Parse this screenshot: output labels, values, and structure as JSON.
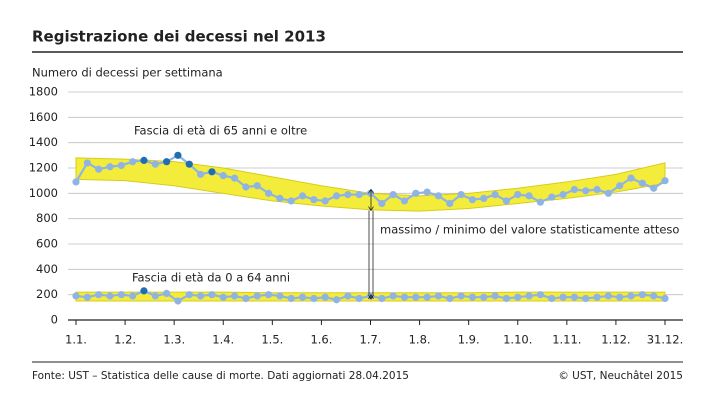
{
  "chart_data": {
    "type": "line",
    "title": "Registrazione dei decessi nel 2013",
    "y_label": "Numero di decessi per settimana",
    "source": "Fonte: UST – Statistica delle cause di morte. Dati aggiornati 28.04.2015",
    "copyright": "© UST, Neuchâtel 2015",
    "annotations": [
      "Fascia di età di 65 anni e oltre",
      "Fascia di età da 0 a 64 anni",
      "massimo / minimo del valore statisticamente atteso"
    ],
    "ylim": [
      0,
      1800
    ],
    "yticks": [
      0,
      200,
      400,
      600,
      800,
      1000,
      1200,
      1400,
      1600,
      1800
    ],
    "xlim": [
      0,
      12
    ],
    "xticks": [
      {
        "value": 0,
        "label": "1.1."
      },
      {
        "value": 1,
        "label": "1.2."
      },
      {
        "value": 2,
        "label": "1.3."
      },
      {
        "value": 3,
        "label": "1.4."
      },
      {
        "value": 4,
        "label": "1.5."
      },
      {
        "value": 5,
        "label": "1.6."
      },
      {
        "value": 6,
        "label": "1.7."
      },
      {
        "value": 7,
        "label": "1.8."
      },
      {
        "value": 8,
        "label": "1.9."
      },
      {
        "value": 9,
        "label": "1.10."
      },
      {
        "value": 10,
        "label": "1.11."
      },
      {
        "value": 11,
        "label": "1.12."
      },
      {
        "value": 12,
        "label": "31.12."
      }
    ],
    "grid": true,
    "band_color": "#f4ec3a",
    "band_edge_color": "#d6cc1e",
    "bands": [
      {
        "upper": [
          1280,
          1270,
          1250,
          1200,
          1130,
          1060,
          1000,
          980,
          1000,
          1040,
          1090,
          1150,
          1240
        ],
        "lower": [
          1110,
          1100,
          1060,
          1000,
          940,
          900,
          870,
          860,
          880,
          920,
          960,
          1010,
          1080
        ]
      },
      {
        "upper": [
          220,
          220,
          220,
          220,
          215,
          215,
          215,
          215,
          215,
          220,
          220,
          220,
          220
        ],
        "lower": [
          150,
          150,
          150,
          150,
          150,
          150,
          150,
          150,
          150,
          150,
          150,
          150,
          150
        ]
      }
    ],
    "series": [
      {
        "color": "#8fb4e3",
        "values": [
          1090,
          1240,
          1190,
          1210,
          1220,
          1250,
          1260,
          1230,
          1250,
          1300,
          1230,
          1150,
          1170,
          1140,
          1120,
          1050,
          1060,
          1000,
          960,
          940,
          980,
          950,
          940,
          980,
          990,
          990,
          1000,
          920,
          990,
          940,
          1000,
          1010,
          980,
          920,
          990,
          950,
          960,
          990,
          940,
          990,
          980,
          930,
          970,
          990,
          1030,
          1020,
          1030,
          1000,
          1060,
          1120,
          1080,
          1040,
          1100
        ],
        "marker_colors": [
          "#8fb4e3",
          "#8fb4e3",
          "#8fb4e3",
          "#8fb4e3",
          "#8fb4e3",
          "#8fb4e3",
          "#1f6eb4",
          "#8fb4e3",
          "#1f6eb4",
          "#1f6eb4",
          "#1f6eb4",
          "#8fb4e3",
          "#1f6eb4",
          "#8fb4e3",
          "#8fb4e3",
          "#8fb4e3",
          "#8fb4e3",
          "#8fb4e3",
          "#8fb4e3",
          "#8fb4e3",
          "#8fb4e3",
          "#8fb4e3",
          "#8fb4e3",
          "#8fb4e3",
          "#8fb4e3",
          "#8fb4e3",
          "#8fb4e3",
          "#8fb4e3",
          "#8fb4e3",
          "#8fb4e3",
          "#8fb4e3",
          "#8fb4e3",
          "#8fb4e3",
          "#8fb4e3",
          "#8fb4e3",
          "#8fb4e3",
          "#8fb4e3",
          "#8fb4e3",
          "#8fb4e3",
          "#8fb4e3",
          "#8fb4e3",
          "#8fb4e3",
          "#8fb4e3",
          "#8fb4e3",
          "#8fb4e3",
          "#8fb4e3",
          "#8fb4e3",
          "#8fb4e3",
          "#8fb4e3",
          "#8fb4e3",
          "#8fb4e3",
          "#8fb4e3",
          "#8fb4e3"
        ]
      },
      {
        "color": "#8fb4e3",
        "values": [
          190,
          180,
          200,
          190,
          200,
          190,
          230,
          190,
          210,
          150,
          200,
          190,
          200,
          180,
          190,
          170,
          190,
          200,
          190,
          170,
          180,
          170,
          180,
          160,
          190,
          170,
          190,
          170,
          190,
          180,
          180,
          180,
          190,
          170,
          190,
          180,
          180,
          190,
          170,
          180,
          190,
          200,
          170,
          180,
          180,
          170,
          180,
          190,
          180,
          190,
          200,
          190,
          170
        ],
        "marker_colors": [
          "#8fb4e3",
          "#8fb4e3",
          "#8fb4e3",
          "#8fb4e3",
          "#8fb4e3",
          "#8fb4e3",
          "#1f6eb4",
          "#8fb4e3",
          "#8fb4e3",
          "#8fb4e3",
          "#8fb4e3",
          "#8fb4e3",
          "#8fb4e3",
          "#8fb4e3",
          "#8fb4e3",
          "#8fb4e3",
          "#8fb4e3",
          "#8fb4e3",
          "#8fb4e3",
          "#8fb4e3",
          "#8fb4e3",
          "#8fb4e3",
          "#8fb4e3",
          "#8fb4e3",
          "#8fb4e3",
          "#8fb4e3",
          "#8fb4e3",
          "#8fb4e3",
          "#8fb4e3",
          "#8fb4e3",
          "#8fb4e3",
          "#8fb4e3",
          "#8fb4e3",
          "#8fb4e3",
          "#8fb4e3",
          "#8fb4e3",
          "#8fb4e3",
          "#8fb4e3",
          "#8fb4e3",
          "#8fb4e3",
          "#8fb4e3",
          "#8fb4e3",
          "#8fb4e3",
          "#8fb4e3",
          "#8fb4e3",
          "#8fb4e3",
          "#8fb4e3",
          "#8fb4e3",
          "#8fb4e3",
          "#8fb4e3",
          "#8fb4e3",
          "#8fb4e3",
          "#8fb4e3"
        ]
      }
    ]
  }
}
